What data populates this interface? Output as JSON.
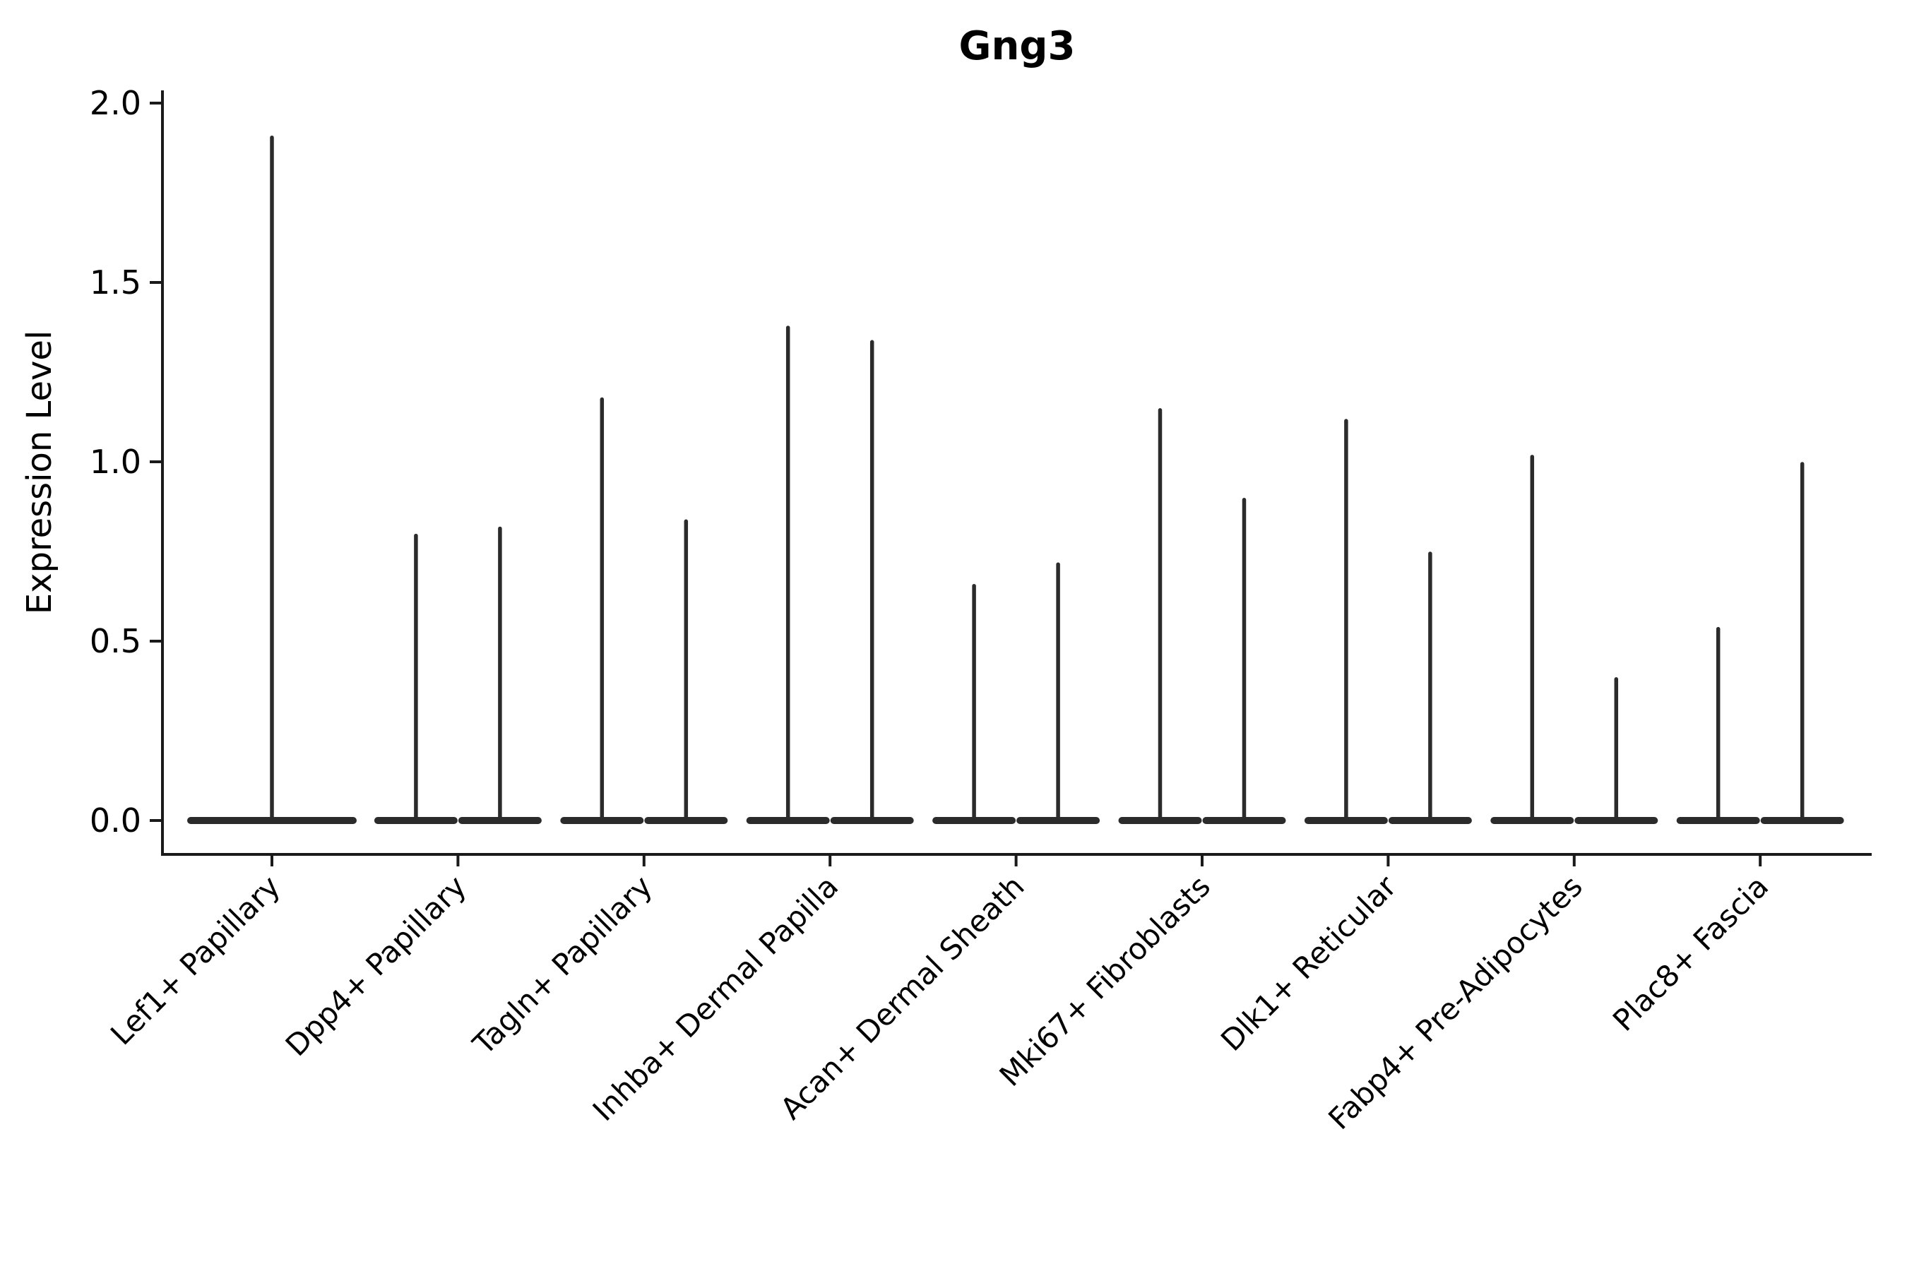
{
  "chart_data": {
    "type": "violin",
    "title": "Gng3",
    "ylabel": "Expression Level",
    "xlabel": "",
    "y_ticks": [
      0.0,
      0.5,
      1.0,
      1.5,
      2.0
    ],
    "y_tick_labels": [
      "0.0",
      "0.5",
      "1.0",
      "1.5",
      "2.0"
    ],
    "ylim": [
      -0.09,
      2.03
    ],
    "grid": false,
    "legend": "none",
    "violin_style": "each violin is collapsed to a flat base at 0 with a thin spike up to its maximum expression value",
    "categories": [
      {
        "label": "Lef1+ Papillary",
        "violin_max_values": [
          1.91
        ]
      },
      {
        "label": "Dpp4+ Papillary",
        "violin_max_values": [
          0.8,
          0.82
        ]
      },
      {
        "label": "Tagln+ Papillary",
        "violin_max_values": [
          1.18,
          0.84
        ]
      },
      {
        "label": "Inhba+ Dermal Papilla",
        "violin_max_values": [
          1.38,
          1.34
        ]
      },
      {
        "label": "Acan+ Dermal Sheath",
        "violin_max_values": [
          0.66,
          0.72
        ]
      },
      {
        "label": "Mki67+ Fibroblasts",
        "violin_max_values": [
          1.15,
          0.9
        ]
      },
      {
        "label": "Dlk1+ Reticular",
        "violin_max_values": [
          1.12,
          0.75
        ]
      },
      {
        "label": "Fabp4+ Pre-Adipocytes",
        "violin_max_values": [
          1.02,
          0.4
        ]
      },
      {
        "label": "Plac8+ Fascia",
        "violin_max_values": [
          0.54,
          1.0
        ]
      }
    ],
    "colors": {
      "line": "#2b2b2b",
      "spine": "#1a1a1a",
      "text": "#000000",
      "background": "#ffffff"
    }
  }
}
